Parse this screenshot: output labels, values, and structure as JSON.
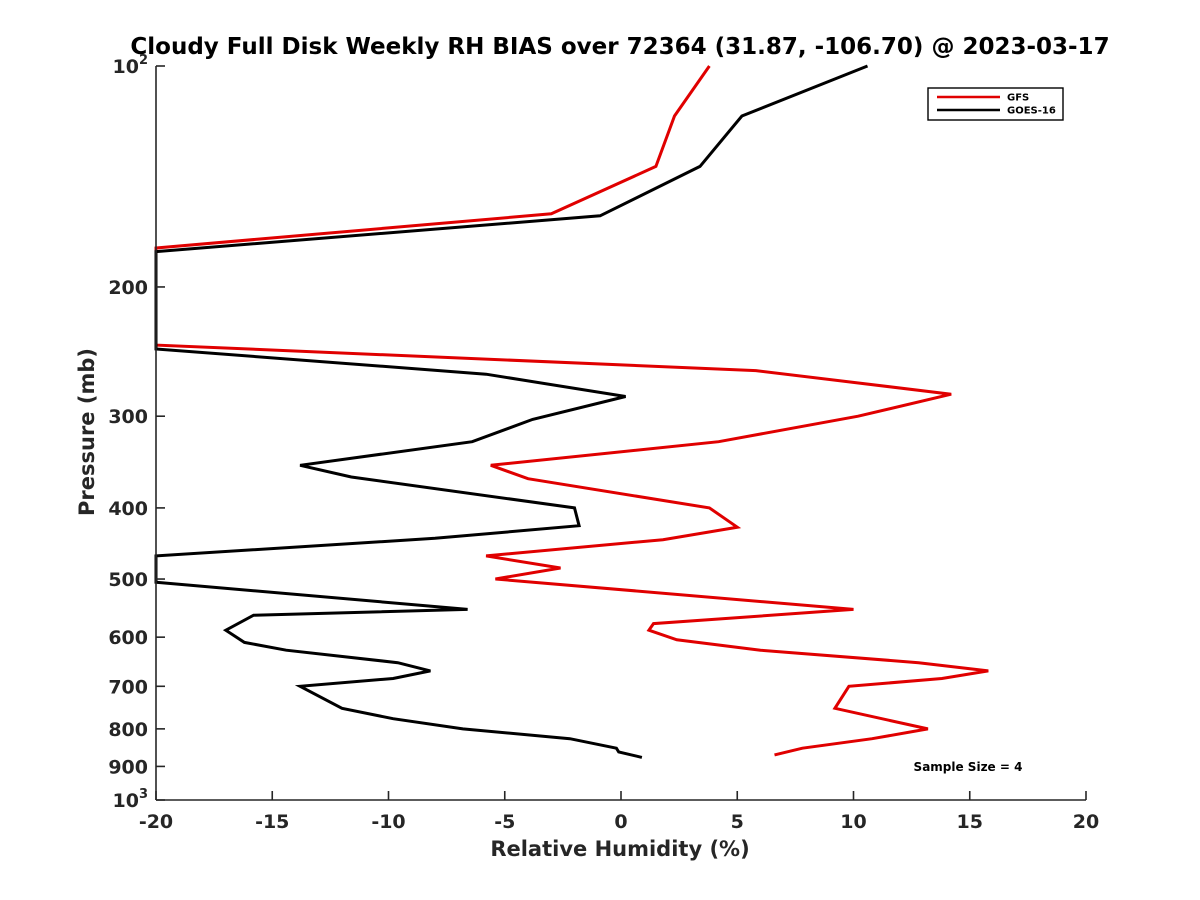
{
  "chart_data": {
    "type": "line",
    "title": "Cloudy Full Disk Weekly RH BIAS over 72364 (31.87, -106.70) @ 2023-03-17",
    "xlabel": "Relative Humidity (%)",
    "ylabel": "Pressure (mb)",
    "xlim": [
      -20,
      20
    ],
    "ylim": [
      100,
      1000
    ],
    "y_scale": "log",
    "y_reversed": true,
    "x_ticks": [
      "-20",
      "-15",
      "-10",
      "-5",
      "0",
      "5",
      "10",
      "15",
      "20"
    ],
    "y_ticks": [
      {
        "base": "10",
        "exp": "2"
      },
      {
        "base": "200",
        "exp": ""
      },
      {
        "base": "300",
        "exp": ""
      },
      {
        "base": "400",
        "exp": ""
      },
      {
        "base": "500",
        "exp": ""
      },
      {
        "base": "600",
        "exp": ""
      },
      {
        "base": "700",
        "exp": ""
      },
      {
        "base": "800",
        "exp": ""
      },
      {
        "base": "900",
        "exp": ""
      },
      {
        "base": "10",
        "exp": "3"
      }
    ],
    "grid": false,
    "legend_position": "top-right",
    "annotation": "Sample Size = 4",
    "series": [
      {
        "name": "GFS",
        "color": "#e00000",
        "points": [
          {
            "x": 3.8,
            "y": 100
          },
          {
            "x": 2.3,
            "y": 117
          },
          {
            "x": 1.5,
            "y": 137
          },
          {
            "x": -3.0,
            "y": 159
          },
          {
            "x": -20.0,
            "y": 177
          },
          {
            "x": -20.0,
            "y": 240
          },
          {
            "x": 5.8,
            "y": 260
          },
          {
            "x": 14.2,
            "y": 280
          },
          {
            "x": 10.2,
            "y": 300
          },
          {
            "x": 4.2,
            "y": 325
          },
          {
            "x": -5.6,
            "y": 350
          },
          {
            "x": -4.0,
            "y": 365
          },
          {
            "x": 3.8,
            "y": 400
          },
          {
            "x": 5.0,
            "y": 425
          },
          {
            "x": 1.8,
            "y": 442
          },
          {
            "x": -5.8,
            "y": 465
          },
          {
            "x": -2.6,
            "y": 483
          },
          {
            "x": -5.4,
            "y": 500
          },
          {
            "x": 10.0,
            "y": 550
          },
          {
            "x": 1.4,
            "y": 575
          },
          {
            "x": 1.2,
            "y": 587
          },
          {
            "x": 2.4,
            "y": 605
          },
          {
            "x": 6.0,
            "y": 625
          },
          {
            "x": 12.8,
            "y": 650
          },
          {
            "x": 15.8,
            "y": 667
          },
          {
            "x": 13.8,
            "y": 683
          },
          {
            "x": 9.8,
            "y": 700
          },
          {
            "x": 9.2,
            "y": 750
          },
          {
            "x": 13.2,
            "y": 800
          },
          {
            "x": 10.8,
            "y": 825
          },
          {
            "x": 7.8,
            "y": 850
          },
          {
            "x": 6.6,
            "y": 868
          }
        ]
      },
      {
        "name": "GOES-16",
        "color": "#000000",
        "points": [
          {
            "x": 10.6,
            "y": 100
          },
          {
            "x": 5.2,
            "y": 117
          },
          {
            "x": 3.4,
            "y": 137
          },
          {
            "x": -0.9,
            "y": 160
          },
          {
            "x": -20.0,
            "y": 179
          },
          {
            "x": -20.0,
            "y": 243
          },
          {
            "x": -5.8,
            "y": 263
          },
          {
            "x": 0.2,
            "y": 282
          },
          {
            "x": -3.8,
            "y": 303
          },
          {
            "x": -6.4,
            "y": 325
          },
          {
            "x": -13.8,
            "y": 350
          },
          {
            "x": -11.6,
            "y": 363
          },
          {
            "x": -2.0,
            "y": 400
          },
          {
            "x": -1.8,
            "y": 423
          },
          {
            "x": -8.0,
            "y": 440
          },
          {
            "x": -20.0,
            "y": 465
          },
          {
            "x": -20.0,
            "y": 505
          },
          {
            "x": -6.6,
            "y": 550
          },
          {
            "x": -15.8,
            "y": 560
          },
          {
            "x": -17.0,
            "y": 587
          },
          {
            "x": -16.2,
            "y": 610
          },
          {
            "x": -14.4,
            "y": 625
          },
          {
            "x": -9.6,
            "y": 650
          },
          {
            "x": -8.2,
            "y": 667
          },
          {
            "x": -9.8,
            "y": 683
          },
          {
            "x": -13.8,
            "y": 700
          },
          {
            "x": -12.0,
            "y": 750
          },
          {
            "x": -9.8,
            "y": 775
          },
          {
            "x": -6.8,
            "y": 800
          },
          {
            "x": -2.2,
            "y": 825
          },
          {
            "x": -0.2,
            "y": 850
          },
          {
            "x": -0.1,
            "y": 860
          },
          {
            "x": 0.9,
            "y": 875
          }
        ]
      }
    ]
  }
}
